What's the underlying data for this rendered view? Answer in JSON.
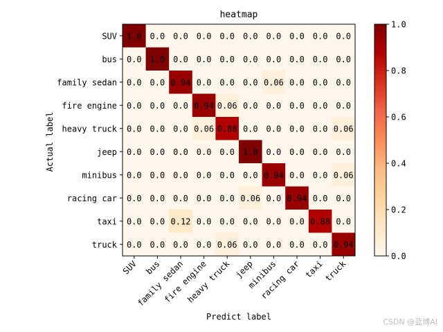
{
  "chart_data": {
    "type": "heatmap",
    "title": "heatmap",
    "xlabel": "Predict label",
    "ylabel": "Actual label",
    "x_categories": [
      "SUV",
      "bus",
      "family sedan",
      "fire engine",
      "heavy truck",
      "jeep",
      "minibus",
      "racing car",
      "taxi",
      "truck"
    ],
    "y_categories": [
      "SUV",
      "bus",
      "family sedan",
      "fire engine",
      "heavy truck",
      "jeep",
      "minibus",
      "racing car",
      "taxi",
      "truck"
    ],
    "values": [
      [
        1.0,
        0.0,
        0.0,
        0.0,
        0.0,
        0.0,
        0.0,
        0.0,
        0.0,
        0.0
      ],
      [
        0.0,
        1.0,
        0.0,
        0.0,
        0.0,
        0.0,
        0.0,
        0.0,
        0.0,
        0.0
      ],
      [
        0.0,
        0.0,
        0.94,
        0.0,
        0.0,
        0.0,
        0.06,
        0.0,
        0.0,
        0.0
      ],
      [
        0.0,
        0.0,
        0.0,
        0.94,
        0.06,
        0.0,
        0.0,
        0.0,
        0.0,
        0.0
      ],
      [
        0.0,
        0.0,
        0.0,
        0.06,
        0.88,
        0.0,
        0.0,
        0.0,
        0.0,
        0.06
      ],
      [
        0.0,
        0.0,
        0.0,
        0.0,
        0.0,
        1.0,
        0.0,
        0.0,
        0.0,
        0.0
      ],
      [
        0.0,
        0.0,
        0.0,
        0.0,
        0.0,
        0.0,
        0.94,
        0.0,
        0.0,
        0.06
      ],
      [
        0.0,
        0.0,
        0.0,
        0.0,
        0.0,
        0.06,
        0.0,
        0.94,
        0.0,
        0.0
      ],
      [
        0.0,
        0.0,
        0.12,
        0.0,
        0.0,
        0.0,
        0.0,
        0.0,
        0.88,
        0.0
      ],
      [
        0.0,
        0.0,
        0.0,
        0.0,
        0.06,
        0.0,
        0.0,
        0.0,
        0.0,
        0.94
      ]
    ],
    "cell_labels": [
      [
        "1.0",
        "0.0",
        "0.0",
        "0.0",
        "0.0",
        "0.0",
        "0.0",
        "0.0",
        "0.0",
        "0.0"
      ],
      [
        "0.0",
        "1.0",
        "0.0",
        "0.0",
        "0.0",
        "0.0",
        "0.0",
        "0.0",
        "0.0",
        "0.0"
      ],
      [
        "0.0",
        "0.0",
        "0.94",
        "0.0",
        "0.0",
        "0.0",
        "0.06",
        "0.0",
        "0.0",
        "0.0"
      ],
      [
        "0.0",
        "0.0",
        "0.0",
        "0.94",
        "0.06",
        "0.0",
        "0.0",
        "0.0",
        "0.0",
        "0.0"
      ],
      [
        "0.0",
        "0.0",
        "0.0",
        "0.06",
        "0.88",
        "0.0",
        "0.0",
        "0.0",
        "0.0",
        "0.06"
      ],
      [
        "0.0",
        "0.0",
        "0.0",
        "0.0",
        "0.0",
        "1.0",
        "0.0",
        "0.0",
        "0.0",
        "0.0"
      ],
      [
        "0.0",
        "0.0",
        "0.0",
        "0.0",
        "0.0",
        "0.0",
        "0.94",
        "0.0",
        "0.0",
        "0.06"
      ],
      [
        "0.0",
        "0.0",
        "0.0",
        "0.0",
        "0.0",
        "0.06",
        "0.0",
        "0.94",
        "0.0",
        "0.0"
      ],
      [
        "0.0",
        "0.0",
        "0.12",
        "0.0",
        "0.0",
        "0.0",
        "0.0",
        "0.0",
        "0.88",
        "0.0"
      ],
      [
        "0.0",
        "0.0",
        "0.0",
        "0.0",
        "0.06",
        "0.0",
        "0.0",
        "0.0",
        "0.0",
        "0.94"
      ]
    ],
    "colorbar": {
      "range": [
        0.0,
        1.0
      ],
      "ticks": [
        0.0,
        0.2,
        0.4,
        0.6,
        0.8,
        1.0
      ],
      "tick_labels": [
        "0.0",
        "0.2",
        "0.4",
        "0.6",
        "0.8",
        "1.0"
      ],
      "colormap": "OrRd",
      "color_stops": [
        "#fff7ec",
        "#fee8c8",
        "#fdd49e",
        "#fdbb84",
        "#fc8d59",
        "#ef6548",
        "#d7301f",
        "#b30000",
        "#7f0000"
      ]
    },
    "grid": false
  },
  "watermark": "CSDN @蓝博AI"
}
